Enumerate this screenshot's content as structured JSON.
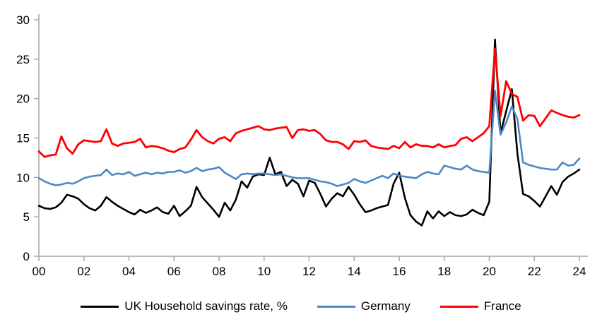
{
  "chart_data": {
    "type": "line",
    "title": "",
    "xlabel": "",
    "ylabel": "",
    "ylim": [
      0,
      30
    ],
    "y_tick_step": 5,
    "y_ticks": [
      0,
      5,
      10,
      15,
      20,
      25,
      30
    ],
    "x_tick_labels": [
      "00",
      "02",
      "04",
      "06",
      "08",
      "10",
      "12",
      "14",
      "16",
      "18",
      "20",
      "22",
      "24"
    ],
    "x_tick_years": [
      2000,
      2002,
      2004,
      2006,
      2008,
      2010,
      2012,
      2014,
      2016,
      2018,
      2020,
      2022,
      2024
    ],
    "x_start": 2000,
    "x_step": 0.25,
    "xlim": [
      2000,
      2024.4
    ],
    "grid": false,
    "legend_position": "bottom-center",
    "axis_color": "#a6a6a6",
    "frequency": "quarterly",
    "series": [
      {
        "id": "uk",
        "name": "UK Household savings rate, %",
        "color": "#000000",
        "stroke_width": 2.6,
        "values": [
          6.4,
          6.1,
          6.0,
          6.2,
          6.8,
          7.8,
          7.6,
          7.3,
          6.6,
          6.1,
          5.8,
          6.4,
          7.5,
          6.9,
          6.4,
          6.0,
          5.6,
          5.3,
          5.9,
          5.5,
          5.8,
          6.2,
          5.6,
          5.4,
          6.4,
          5.1,
          5.7,
          6.4,
          8.8,
          7.5,
          6.7,
          5.9,
          5.0,
          6.8,
          5.8,
          7.2,
          9.5,
          8.7,
          10.1,
          10.4,
          10.3,
          12.5,
          10.4,
          10.7,
          8.9,
          9.7,
          9.2,
          7.6,
          9.6,
          9.3,
          7.9,
          6.3,
          7.3,
          8.0,
          7.6,
          8.8,
          7.8,
          6.6,
          5.6,
          5.8,
          6.1,
          6.3,
          6.5,
          9.2,
          10.6,
          7.4,
          5.2,
          4.4,
          3.9,
          5.7,
          4.8,
          5.7,
          5.1,
          5.6,
          5.2,
          5.1,
          5.3,
          5.9,
          5.5,
          5.2,
          6.9,
          27.5,
          15.6,
          18.4,
          21.2,
          13.0,
          7.9,
          7.6,
          7.0,
          6.3,
          7.6,
          8.9,
          7.8,
          9.4,
          10.1,
          10.5,
          11.0
        ]
      },
      {
        "id": "germany",
        "name": "Germany",
        "color": "#4f87c5",
        "stroke_width": 2.6,
        "values": [
          9.9,
          9.5,
          9.2,
          9.0,
          9.1,
          9.3,
          9.2,
          9.5,
          9.9,
          10.1,
          10.2,
          10.3,
          11.0,
          10.3,
          10.5,
          10.4,
          10.7,
          10.2,
          10.4,
          10.6,
          10.4,
          10.6,
          10.5,
          10.7,
          10.7,
          10.9,
          10.6,
          10.8,
          11.2,
          10.8,
          11.0,
          11.1,
          11.3,
          10.6,
          10.2,
          9.8,
          10.4,
          10.5,
          10.4,
          10.5,
          10.5,
          10.4,
          10.3,
          10.4,
          10.2,
          10.0,
          9.9,
          9.9,
          9.9,
          9.7,
          9.5,
          9.4,
          9.2,
          8.9,
          9.1,
          9.3,
          9.8,
          9.5,
          9.3,
          9.6,
          9.9,
          10.2,
          9.9,
          10.5,
          10.2,
          10.1,
          10.0,
          9.9,
          10.4,
          10.7,
          10.5,
          10.4,
          11.5,
          11.3,
          11.1,
          11.0,
          11.5,
          11.0,
          10.8,
          10.7,
          10.6,
          21.0,
          15.4,
          17.0,
          19.0,
          17.4,
          11.9,
          11.6,
          11.4,
          11.2,
          11.1,
          11.0,
          11.0,
          11.9,
          11.5,
          11.6,
          12.4
        ]
      },
      {
        "id": "france",
        "name": "France",
        "color": "#ff0000",
        "stroke_width": 2.8,
        "values": [
          13.3,
          12.6,
          12.8,
          12.9,
          15.2,
          13.7,
          13.0,
          14.2,
          14.7,
          14.6,
          14.5,
          14.6,
          16.1,
          14.3,
          14.0,
          14.3,
          14.4,
          14.5,
          14.9,
          13.8,
          14.0,
          13.9,
          13.7,
          13.4,
          13.2,
          13.6,
          13.8,
          14.8,
          16.0,
          15.1,
          14.6,
          14.3,
          14.9,
          15.1,
          14.6,
          15.6,
          15.9,
          16.1,
          16.3,
          16.5,
          16.1,
          16.0,
          16.2,
          16.3,
          16.4,
          15.0,
          16.0,
          16.1,
          15.9,
          16.0,
          15.5,
          14.7,
          14.5,
          14.5,
          14.2,
          13.6,
          14.6,
          14.5,
          14.7,
          14.0,
          13.8,
          13.7,
          13.6,
          14.0,
          13.7,
          14.5,
          13.8,
          14.2,
          14.0,
          14.0,
          13.8,
          14.2,
          13.8,
          14.0,
          14.1,
          14.9,
          15.1,
          14.6,
          15.1,
          15.6,
          16.5,
          26.3,
          17.8,
          22.2,
          20.6,
          20.2,
          17.2,
          17.9,
          17.8,
          16.5,
          17.5,
          18.5,
          18.2,
          17.9,
          17.7,
          17.6,
          17.9
        ]
      }
    ]
  },
  "legend": {
    "uk_label": "UK Household savings rate, %",
    "germany_label": "Germany",
    "france_label": "France"
  }
}
